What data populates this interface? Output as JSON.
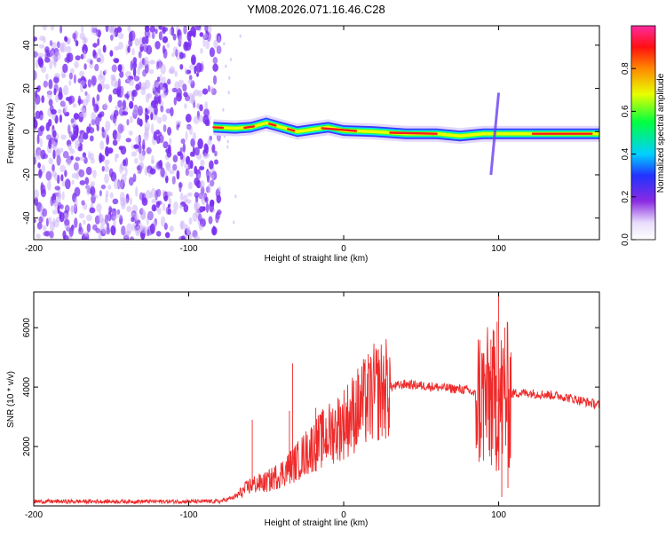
{
  "title": "YM08.2026.071.16.46.C28",
  "colors": {
    "noise": "#7a2ff0",
    "noise_light": "#c9b0f8",
    "snr_line": "#ee2a2a",
    "axis": "#000000",
    "background": "#ffffff"
  },
  "chart_data": [
    {
      "type": "heatmap",
      "name": "spectrogram",
      "title": "YM08.2026.071.16.46.C28",
      "xlabel": "Height of straight line (km)",
      "ylabel": "Frequency (Hz)",
      "xlim": [
        -200,
        165
      ],
      "ylim": [
        -50,
        49
      ],
      "xticks": [
        -200,
        -100,
        0,
        100
      ],
      "yticks": [
        -40,
        -20,
        0,
        20,
        40
      ],
      "noise_region_x": [
        -200,
        -80
      ],
      "signal_ridge": [
        {
          "x": -84,
          "y": 2
        },
        {
          "x": -70,
          "y": 1.5
        },
        {
          "x": -60,
          "y": 2
        },
        {
          "x": -50,
          "y": 4
        },
        {
          "x": -40,
          "y": 2
        },
        {
          "x": -30,
          "y": 0
        },
        {
          "x": -20,
          "y": 1
        },
        {
          "x": -10,
          "y": 2
        },
        {
          "x": 0,
          "y": 0.5
        },
        {
          "x": 20,
          "y": 0
        },
        {
          "x": 40,
          "y": -1
        },
        {
          "x": 60,
          "y": -1
        },
        {
          "x": 75,
          "y": -2
        },
        {
          "x": 90,
          "y": -1
        },
        {
          "x": 100,
          "y": -1
        },
        {
          "x": 120,
          "y": -1
        },
        {
          "x": 140,
          "y": -1
        },
        {
          "x": 165,
          "y": -1
        }
      ],
      "spike": {
        "x": 97,
        "y_range": [
          -20,
          18
        ]
      },
      "colorbar": {
        "label": "Normalized spectral amplitude",
        "range": [
          0.0,
          1.0
        ],
        "ticks": [
          0.0,
          0.2,
          0.4,
          0.6,
          0.8
        ],
        "tick_labels": [
          "0.0",
          "0.2",
          "0.4",
          "0.6",
          "0.8"
        ]
      }
    },
    {
      "type": "line",
      "name": "snr",
      "xlabel": "Height of straight line (km)",
      "ylabel": "SNR (10 * v/v)",
      "xlim": [
        -200,
        165
      ],
      "ylim": [
        0,
        7200
      ],
      "xticks": [
        -200,
        -100,
        0,
        100
      ],
      "yticks": [
        2000,
        4000,
        6000
      ],
      "envelope": [
        {
          "x": -200,
          "y": 150
        },
        {
          "x": -80,
          "y": 150
        },
        {
          "x": -70,
          "y": 300
        },
        {
          "x": -60,
          "y": 700
        },
        {
          "x": -50,
          "y": 800
        },
        {
          "x": -40,
          "y": 1100
        },
        {
          "x": -30,
          "y": 1500
        },
        {
          "x": -20,
          "y": 2000
        },
        {
          "x": -10,
          "y": 2400
        },
        {
          "x": 0,
          "y": 2800
        },
        {
          "x": 10,
          "y": 3300
        },
        {
          "x": 20,
          "y": 3800
        },
        {
          "x": 30,
          "y": 4000
        },
        {
          "x": 40,
          "y": 4100
        },
        {
          "x": 60,
          "y": 4000
        },
        {
          "x": 80,
          "y": 3900
        },
        {
          "x": 90,
          "y": 3600
        },
        {
          "x": 100,
          "y": 3500
        },
        {
          "x": 110,
          "y": 3800
        },
        {
          "x": 120,
          "y": 3800
        },
        {
          "x": 140,
          "y": 3700
        },
        {
          "x": 165,
          "y": 3400
        }
      ],
      "spikes": [
        {
          "x": -59,
          "y": 2900
        },
        {
          "x": -33,
          "y": 4800
        },
        {
          "x": -35,
          "y": 3200
        },
        {
          "x": -18,
          "y": 3300
        },
        {
          "x": 95,
          "y": 5600
        },
        {
          "x": 99,
          "y": 6200
        },
        {
          "x": 100,
          "y": 7200
        },
        {
          "x": 104,
          "y": 6000
        },
        {
          "x": 102,
          "y": 300
        },
        {
          "x": 106,
          "y": 600
        }
      ]
    }
  ]
}
